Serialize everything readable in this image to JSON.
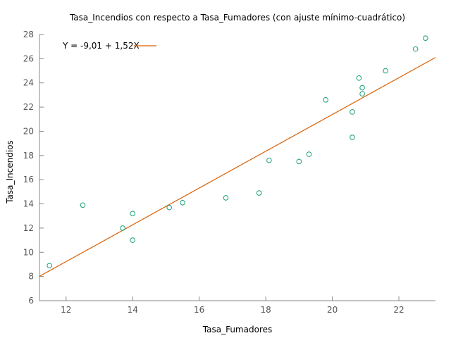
{
  "chart_data": {
    "type": "scatter",
    "title": "Tasa_Incendios con respecto a Tasa_Fumadores (con ajuste mínimo-cuadrático)",
    "xlabel": "Tasa_Fumadores",
    "ylabel": "Tasa_Incendios",
    "xlim": [
      11.2,
      23.1
    ],
    "ylim": [
      6,
      28
    ],
    "xticks": [
      "12",
      "14",
      "16",
      "18",
      "20",
      "22"
    ],
    "yticks": [
      "6",
      "8",
      "10",
      "12",
      "14",
      "16",
      "18",
      "20",
      "22",
      "24",
      "26",
      "28"
    ],
    "grid": false,
    "legend_position": "top-left",
    "points": [
      {
        "x": 11.5,
        "y": 8.9
      },
      {
        "x": 12.5,
        "y": 13.9
      },
      {
        "x": 13.7,
        "y": 12.0
      },
      {
        "x": 14.0,
        "y": 13.2
      },
      {
        "x": 14.0,
        "y": 11.0
      },
      {
        "x": 15.1,
        "y": 13.7
      },
      {
        "x": 15.5,
        "y": 14.1
      },
      {
        "x": 16.8,
        "y": 14.5
      },
      {
        "x": 17.8,
        "y": 14.9
      },
      {
        "x": 18.1,
        "y": 17.6
      },
      {
        "x": 19.0,
        "y": 17.5
      },
      {
        "x": 19.3,
        "y": 18.1
      },
      {
        "x": 19.8,
        "y": 22.6
      },
      {
        "x": 20.6,
        "y": 21.6
      },
      {
        "x": 20.6,
        "y": 19.5
      },
      {
        "x": 20.8,
        "y": 24.4
      },
      {
        "x": 20.9,
        "y": 23.6
      },
      {
        "x": 20.9,
        "y": 23.1
      },
      {
        "x": 21.6,
        "y": 25.0
      },
      {
        "x": 22.5,
        "y": 26.8
      },
      {
        "x": 22.8,
        "y": 27.7
      }
    ],
    "fit": {
      "label": "Y = -9,01 + 1,52X",
      "intercept": -9.01,
      "slope": 1.52
    },
    "colors": {
      "points": "#1a9e77",
      "fit": "#d95f02",
      "axis": "#888888"
    }
  }
}
